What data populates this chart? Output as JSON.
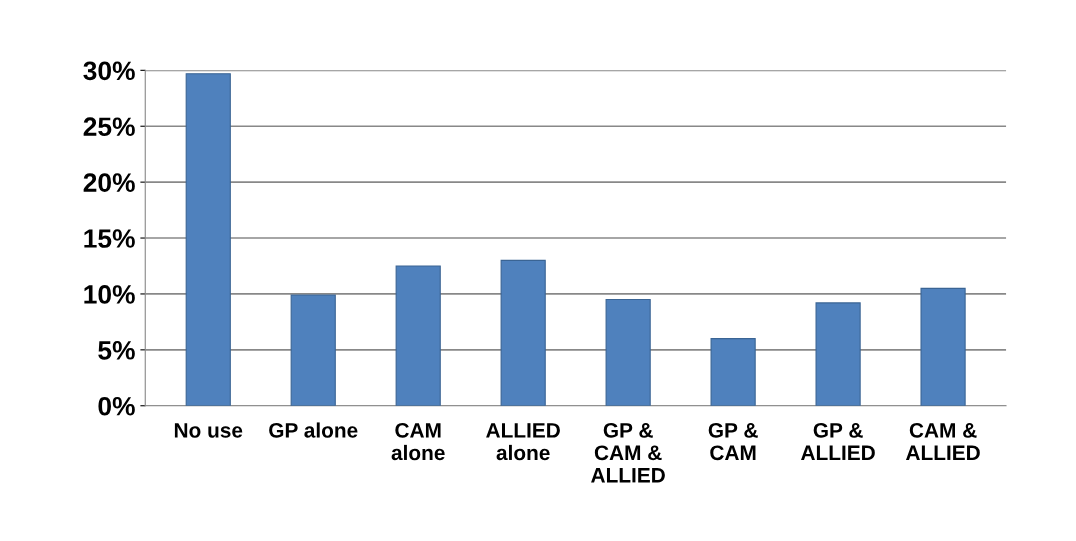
{
  "chart_data": {
    "type": "bar",
    "categories": [
      "No use",
      "GP alone",
      "CAM\nalone",
      "ALLIED\nalone",
      "GP &\nCAM &\nALLIED",
      "GP &\nCAM",
      "GP &\nALLIED",
      "CAM &\nALLIED"
    ],
    "values": [
      29.7,
      9.9,
      12.5,
      13.0,
      9.5,
      6.0,
      9.2,
      10.5
    ],
    "color": "#4f81bd",
    "ylim": [
      0,
      30
    ],
    "yticks": [
      {
        "value": 0,
        "label": "0%"
      },
      {
        "value": 5,
        "label": "5%"
      },
      {
        "value": 10,
        "label": "10%"
      },
      {
        "value": 15,
        "label": "15%"
      },
      {
        "value": 20,
        "label": "20%"
      },
      {
        "value": 25,
        "label": "25%"
      },
      {
        "value": 30,
        "label": "30%"
      }
    ],
    "grid": "y"
  }
}
